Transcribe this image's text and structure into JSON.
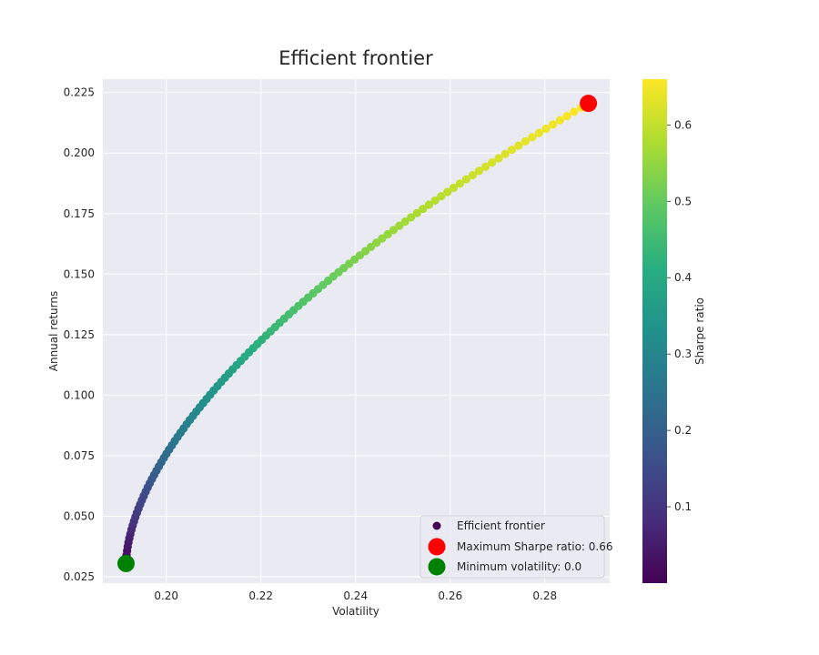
{
  "chart_data": {
    "type": "scatter",
    "title": "Efficient frontier",
    "xlabel": "Volatility",
    "ylabel": "Annual returns",
    "xlim": [
      0.1866,
      0.2937
    ],
    "ylim": [
      0.0224,
      0.2305
    ],
    "xticks": [
      "0.20",
      "0.22",
      "0.24",
      "0.26",
      "0.28"
    ],
    "yticks": [
      "0.025",
      "0.050",
      "0.075",
      "0.100",
      "0.125",
      "0.150",
      "0.175",
      "0.200",
      "0.225"
    ],
    "grid": true,
    "background": "#eaeaf2",
    "colormap": "viridis",
    "colorbar": {
      "label": "Sharpe ratio",
      "range": [
        0.0,
        0.66
      ],
      "ticks": [
        "0.1",
        "0.2",
        "0.3",
        "0.4",
        "0.5",
        "0.6"
      ]
    },
    "frontier": {
      "name": "Efficient frontier",
      "return_min": 0.0305,
      "return_max": 0.2205,
      "vol_min": 0.1915,
      "vol_max": 0.2892,
      "points": 110
    },
    "max_sharpe": {
      "name": "Maximum Sharpe ratio: 0.66",
      "x": 0.2892,
      "y": 0.2205,
      "color": "#ff0000"
    },
    "min_volatility": {
      "name": "Minimum volatility: 0.0",
      "x": 0.1915,
      "y": 0.0305,
      "color": "#008000"
    },
    "legend": {
      "position": "lower-right",
      "entries": [
        "Efficient frontier",
        "Maximum Sharpe ratio: 0.66",
        "Minimum volatility: 0.0"
      ]
    }
  }
}
